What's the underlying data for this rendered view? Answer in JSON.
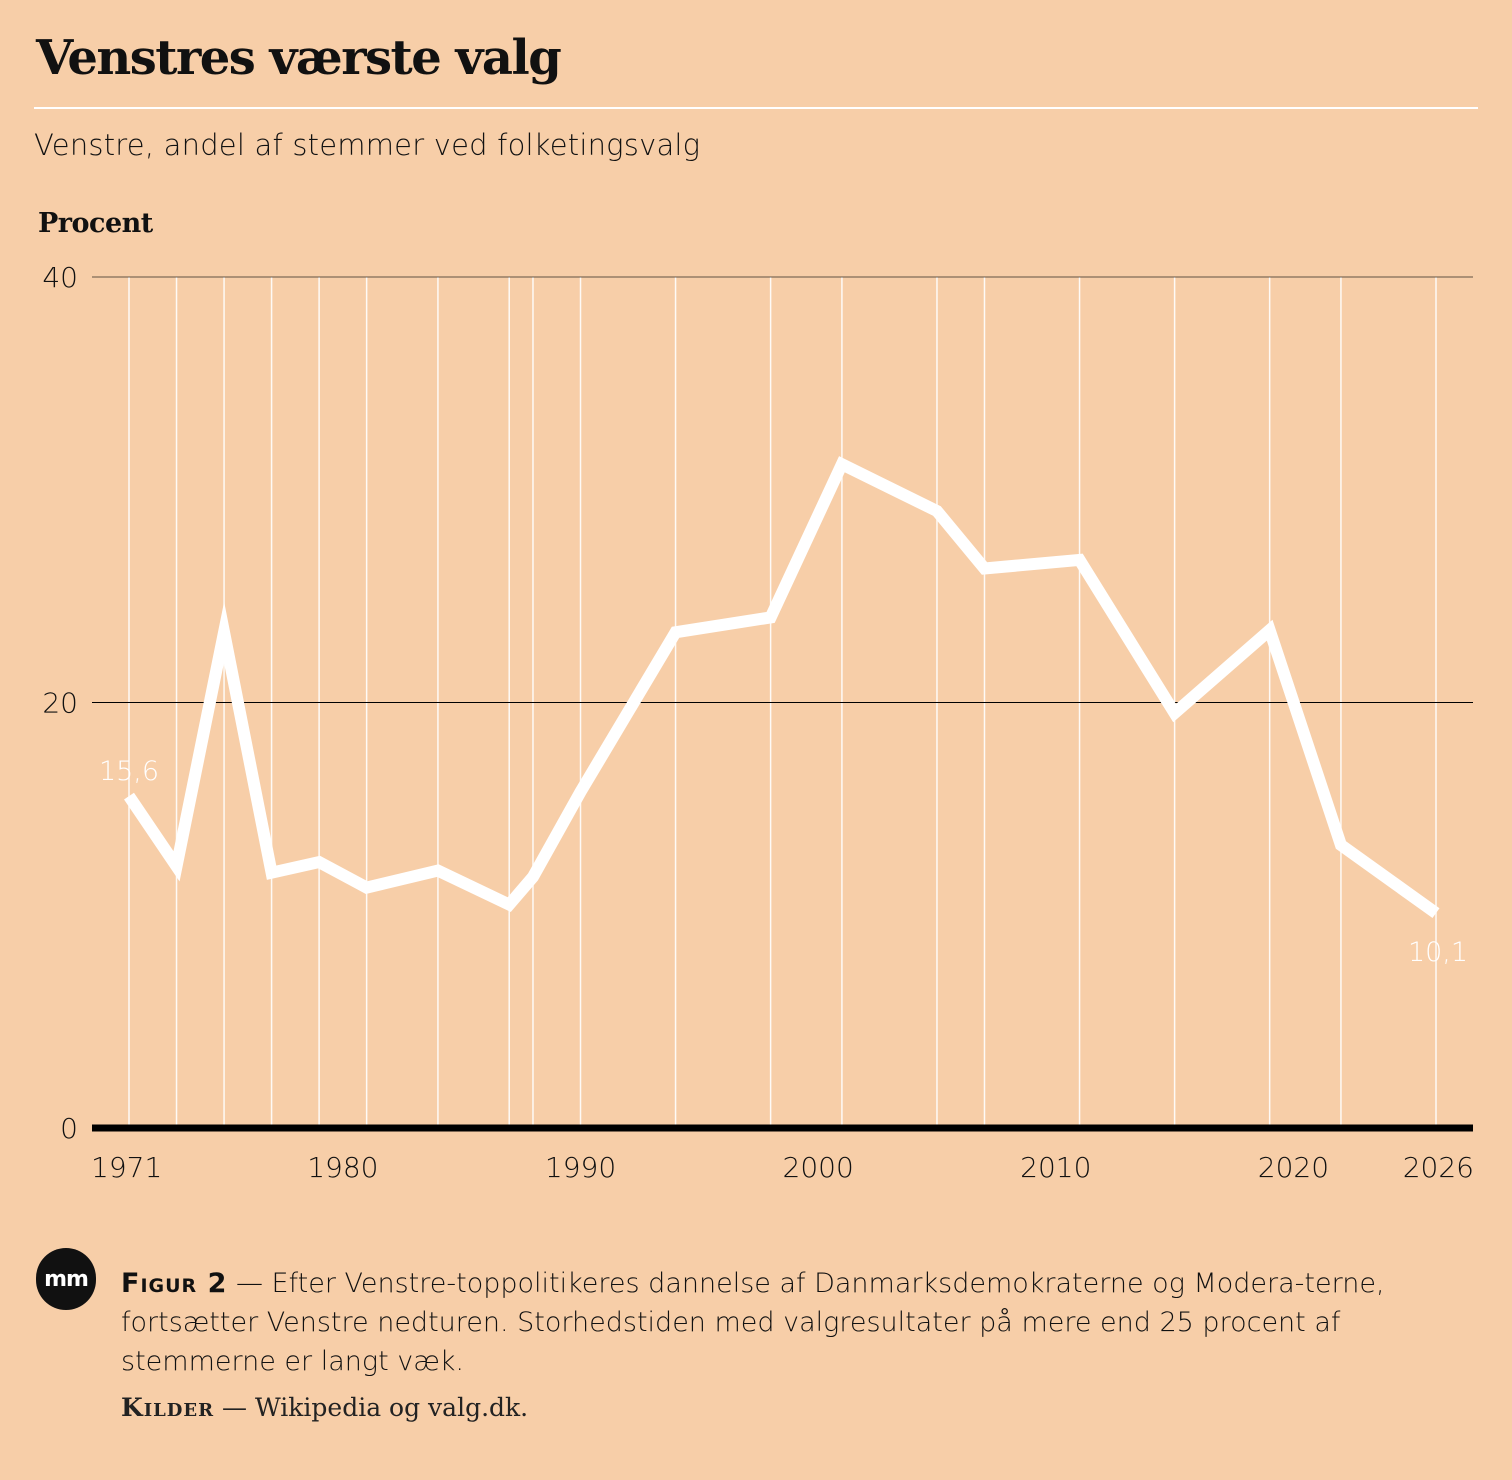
{
  "header": {
    "title": "Venstres værste valg",
    "subtitle": "Venstre, andel af stemmer ved folketingsvalg"
  },
  "footer": {
    "logo_text": "mm",
    "figure_label": "Figur 2",
    "dash": "—",
    "caption": "Efter Venstre-toppolitikeres dannelse af Danmarksdemokraterne og Modera-terne, fortsætter Venstre nedturen. Storhedstiden med valgresultater på mere end 25 procent af stemmerne er langt væk.",
    "sources_label": "Kilder",
    "sources_text": "Wikipedia og valg.dk."
  },
  "colors": {
    "background": "#f7cea8",
    "line": "#ffffff",
    "gridline_vertical": "#ffffff",
    "gridline_horizontal": "#000000",
    "axis": "#000000"
  },
  "chart_data": {
    "type": "line",
    "title": "Venstres værste valg",
    "subtitle": "Venstre, andel af stemmer ved folketingsvalg",
    "ylabel": "Procent",
    "xlabel": "",
    "ylim": [
      0,
      40
    ],
    "xlim": [
      1971,
      2026
    ],
    "yticks": [
      0,
      20,
      40
    ],
    "xticks": [
      1971,
      1980,
      1990,
      2000,
      2010,
      2020,
      2026
    ],
    "grid": true,
    "series": [
      {
        "name": "Venstre",
        "x": [
          1971,
          1973,
          1975,
          1977,
          1979,
          1981,
          1984,
          1987,
          1988,
          1990,
          1994,
          1998,
          2001,
          2005,
          2007,
          2011,
          2015,
          2019,
          2022,
          2026
        ],
        "values": [
          15.6,
          12.3,
          23.3,
          12.0,
          12.5,
          11.3,
          12.1,
          10.5,
          11.8,
          15.8,
          23.3,
          24.0,
          31.2,
          29.0,
          26.3,
          26.7,
          19.5,
          23.4,
          13.3,
          10.1
        ]
      }
    ],
    "annotations": [
      {
        "x": 1971,
        "text": "15,6"
      },
      {
        "x": 2026,
        "text": "10,1"
      }
    ]
  }
}
